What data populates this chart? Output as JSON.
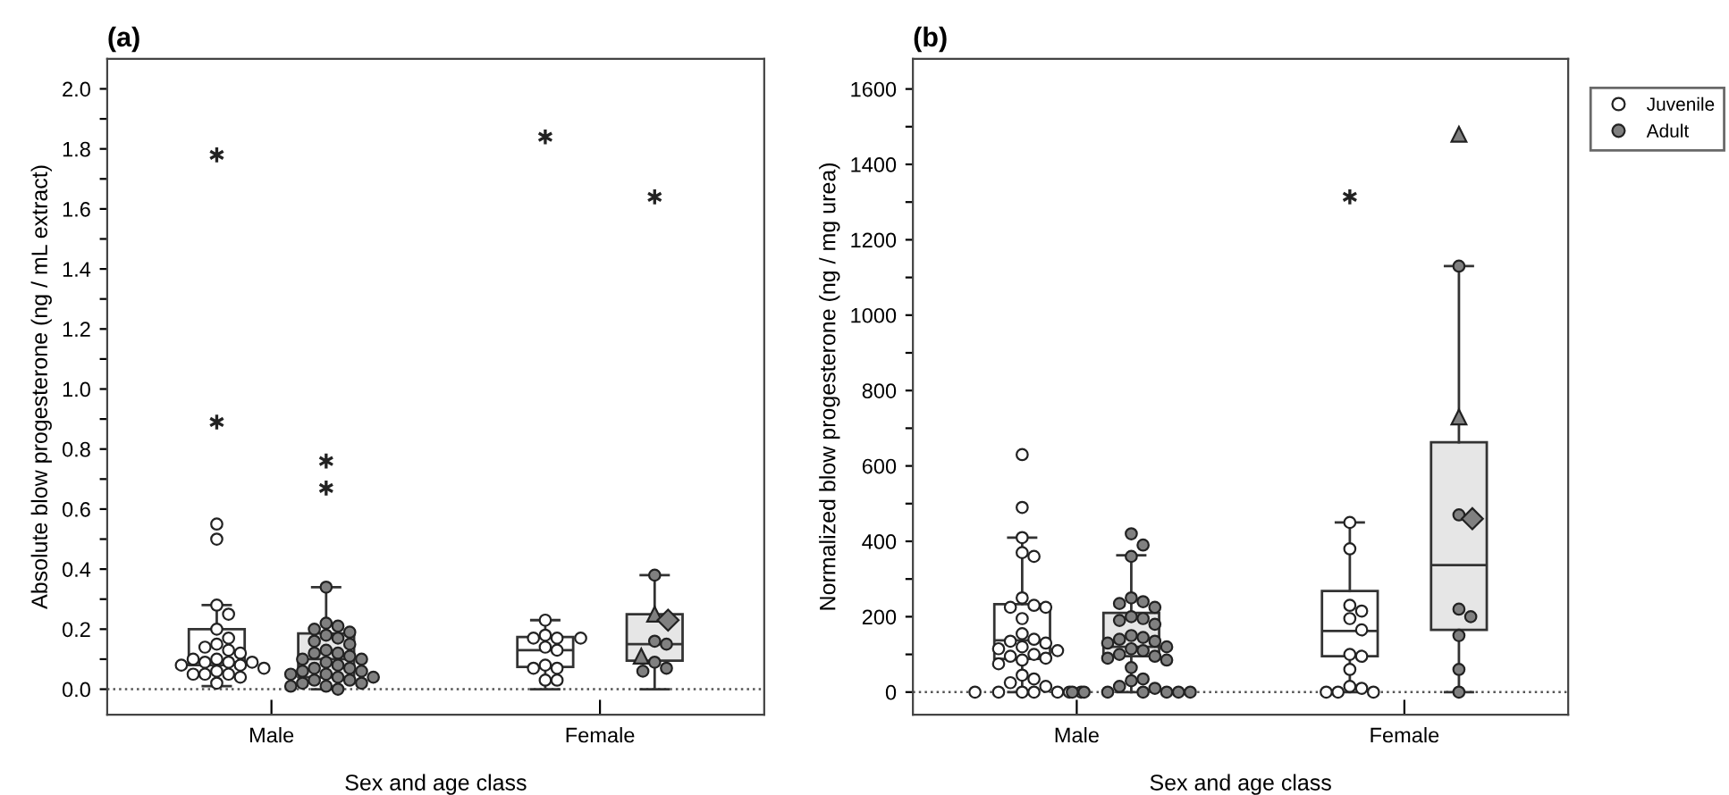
{
  "chart_data": [
    {
      "type": "box",
      "title": "(a)",
      "xlabel": "Sex and age class",
      "ylabel": "Absolute blow progesterone (ng / mL extract)",
      "categories": [
        "Male",
        "Female"
      ],
      "ylim": [
        -0.085,
        2.1
      ],
      "yticks": [
        {
          "value": 0,
          "label": "0.0"
        },
        {
          "value": 0.1,
          "label": null
        },
        {
          "value": 0.2,
          "label": "0.2"
        },
        {
          "value": 0.3,
          "label": null
        },
        {
          "value": 0.4,
          "label": "0.4"
        },
        {
          "value": 0.5,
          "label": null
        },
        {
          "value": 0.6,
          "label": "0.6"
        },
        {
          "value": 0.7,
          "label": null
        },
        {
          "value": 0.8,
          "label": "0.8"
        },
        {
          "value": 0.9,
          "label": null
        },
        {
          "value": 1.0,
          "label": "1.0"
        },
        {
          "value": 1.1,
          "label": null
        },
        {
          "value": 1.2,
          "label": "1.2"
        },
        {
          "value": 1.3,
          "label": null
        },
        {
          "value": 1.4,
          "label": "1.4"
        },
        {
          "value": 1.5,
          "label": null
        },
        {
          "value": 1.6,
          "label": "1.6"
        },
        {
          "value": 1.7,
          "label": null
        },
        {
          "value": 1.8,
          "label": "1.8"
        },
        {
          "value": 1.9,
          "label": null
        },
        {
          "value": 2.0,
          "label": "2.0"
        }
      ],
      "grid": false,
      "legend": false,
      "ref_lines": [
        {
          "axis": "y",
          "value": 0,
          "line_style": "dotted",
          "color": "#555555"
        }
      ],
      "series": [
        {
          "color": "#ffffff",
          "boxes": [
            {
              "low": 0.01,
              "q1": 0.08,
              "median": 0.09,
              "q3": 0.2,
              "high": 0.28,
              "outliers": [
                1.78,
                0.89
              ]
            },
            {
              "low": 0.0,
              "q1": 0.074,
              "median": 0.13,
              "q3": 0.174,
              "high": 0.23,
              "outliers": [
                1.84
              ]
            }
          ]
        },
        {
          "color": "#e6e6e6",
          "boxes": [
            {
              "low": 0.0,
              "q1": 0.04,
              "median": 0.1,
              "q3": 0.186,
              "high": 0.34,
              "outliers": [
                0.76,
                0.67
              ]
            },
            {
              "low": 0.0,
              "q1": 0.095,
              "median": 0.15,
              "q3": 0.25,
              "high": 0.38,
              "outliers": [
                1.64
              ]
            }
          ]
        },
        {
          "type": "scatter",
          "marker": "circle",
          "color": "#ffffff",
          "x": [
            "Male",
            "Male",
            "Male",
            "Male",
            "Male",
            "Male",
            "Male",
            "Male",
            "Male",
            "Male",
            "Male",
            "Male",
            "Male",
            "Male",
            "Male",
            "Male",
            "Male",
            "Male",
            "Male",
            "Male",
            "Male",
            "Male",
            "Male",
            "Male",
            "Female",
            "Female",
            "Female",
            "Female",
            "Female",
            "Female",
            "Female",
            "Female",
            "Female",
            "Female",
            "Female",
            "Female"
          ],
          "values": [
            0.55,
            0.5,
            0.28,
            0.25,
            0.2,
            0.17,
            0.15,
            0.14,
            0.13,
            0.12,
            0.1,
            0.1,
            0.09,
            0.09,
            0.09,
            0.08,
            0.08,
            0.07,
            0.06,
            0.05,
            0.05,
            0.05,
            0.04,
            0.02,
            0.23,
            0.18,
            0.17,
            0.17,
            0.17,
            0.14,
            0.13,
            0.08,
            0.07,
            0.07,
            0.03,
            0.03
          ]
        },
        {
          "type": "scatter",
          "marker": "circle",
          "color": "#808080",
          "x": [
            "Male",
            "Male",
            "Male",
            "Male",
            "Male",
            "Male",
            "Male",
            "Male",
            "Male",
            "Male",
            "Male",
            "Male",
            "Male",
            "Male",
            "Male",
            "Male",
            "Male",
            "Male",
            "Male",
            "Male",
            "Male",
            "Male",
            "Male",
            "Male",
            "Male",
            "Male",
            "Male",
            "Male",
            "Male",
            "Male",
            "Male",
            "Male",
            "Female",
            "Female",
            "Female",
            "Female",
            "Female",
            "Female"
          ],
          "values": [
            0.34,
            0.22,
            0.21,
            0.2,
            0.19,
            0.18,
            0.17,
            0.16,
            0.15,
            0.13,
            0.12,
            0.12,
            0.11,
            0.1,
            0.1,
            0.09,
            0.08,
            0.07,
            0.07,
            0.06,
            0.06,
            0.05,
            0.05,
            0.04,
            0.04,
            0.03,
            0.03,
            0.02,
            0.02,
            0.01,
            0.01,
            0.0,
            0.38,
            0.16,
            0.15,
            0.09,
            0.07,
            0.06
          ]
        },
        {
          "type": "scatter",
          "marker": "triangle",
          "color": "#808080",
          "x": [
            "Female",
            "Female"
          ],
          "values": [
            0.25,
            0.11
          ]
        },
        {
          "type": "scatter",
          "marker": "diamond",
          "color": "#808080",
          "x": [
            "Female"
          ],
          "values": [
            0.23
          ]
        }
      ]
    },
    {
      "type": "box",
      "title": "(b)",
      "xlabel": "Sex and age class",
      "ylabel": "Normalized blow progesterone (ng / mg urea)",
      "categories": [
        "Male",
        "Female"
      ],
      "ylim": [
        -60,
        1680
      ],
      "yticks": [
        0,
        {
          "value": 100,
          "label": null
        },
        200,
        {
          "value": 300,
          "label": null
        },
        400,
        {
          "value": 500,
          "label": null
        },
        600,
        {
          "value": 700,
          "label": null
        },
        800,
        {
          "value": 900,
          "label": null
        },
        1000,
        {
          "value": 1100,
          "label": null
        },
        1200,
        {
          "value": 1300,
          "label": null
        },
        1400,
        {
          "value": 1500,
          "label": null
        },
        1600
      ],
      "grid": false,
      "legend": "right",
      "ref_lines": [
        {
          "axis": "y",
          "value": 0,
          "line_style": "dotted",
          "color": "#555555"
        }
      ],
      "series": [
        {
          "color": "#ffffff",
          "boxes": [
            {
              "low": 0,
              "q1": 88,
              "median": 137,
              "q3": 233,
              "high": 410
            },
            {
              "low": 0,
              "q1": 95,
              "median": 162,
              "q3": 268,
              "high": 450,
              "outliers": [
                1314
              ]
            }
          ]
        },
        {
          "color": "#e6e6e6",
          "boxes": [
            {
              "low": 0,
              "q1": 95,
              "median": 120,
              "q3": 210,
              "high": 363
            },
            {
              "low": 0,
              "q1": 165,
              "median": 337,
              "q3": 663,
              "high": 1130
            }
          ]
        },
        {
          "type": "scatter",
          "name": "Juvenile",
          "marker": "circle",
          "color": "#ffffff",
          "x": [
            "Male",
            "Male",
            "Male",
            "Male",
            "Male",
            "Male",
            "Male",
            "Male",
            "Male",
            "Male",
            "Male",
            "Male",
            "Male",
            "Male",
            "Male",
            "Male",
            "Male",
            "Male",
            "Male",
            "Male",
            "Male",
            "Male",
            "Male",
            "Male",
            "Male",
            "Male",
            "Male",
            "Male",
            "Male",
            "Male",
            "Male",
            "Male",
            "Male",
            "Female",
            "Female",
            "Female",
            "Female",
            "Female",
            "Female",
            "Female",
            "Female",
            "Female",
            "Female",
            "Female",
            "Female",
            "Female",
            "Female"
          ],
          "values": [
            630,
            490,
            410,
            370,
            360,
            250,
            230,
            225,
            225,
            195,
            155,
            140,
            135,
            130,
            120,
            115,
            110,
            100,
            95,
            90,
            85,
            75,
            45,
            35,
            25,
            15,
            0,
            0,
            0,
            0,
            0,
            0,
            0,
            450,
            380,
            230,
            215,
            195,
            165,
            100,
            95,
            60,
            15,
            10,
            0,
            0,
            0
          ]
        },
        {
          "type": "scatter",
          "name": "Adult",
          "marker": "circle",
          "color": "#808080",
          "x": [
            "Male",
            "Male",
            "Male",
            "Male",
            "Male",
            "Male",
            "Male",
            "Male",
            "Male",
            "Male",
            "Male",
            "Male",
            "Male",
            "Male",
            "Male",
            "Male",
            "Male",
            "Male",
            "Male",
            "Male",
            "Male",
            "Male",
            "Male",
            "Male",
            "Male",
            "Male",
            "Male",
            "Male",
            "Male",
            "Male",
            "Male",
            "Male",
            "Male",
            "Male",
            "Male",
            "Female",
            "Female",
            "Female",
            "Female",
            "Female",
            "Female",
            "Female"
          ],
          "values": [
            420,
            390,
            360,
            250,
            240,
            235,
            225,
            200,
            195,
            190,
            180,
            150,
            145,
            140,
            135,
            130,
            120,
            115,
            110,
            100,
            95,
            90,
            85,
            65,
            35,
            30,
            15,
            10,
            0,
            0,
            0,
            0,
            0,
            0,
            0,
            1130,
            470,
            220,
            200,
            150,
            60,
            0
          ]
        },
        {
          "type": "scatter",
          "marker": "triangle",
          "color": "#808080",
          "x": [
            "Female",
            "Female"
          ],
          "values": [
            1480,
            730
          ]
        },
        {
          "type": "scatter",
          "marker": "diamond",
          "color": "#808080",
          "x": [
            "Female"
          ],
          "values": [
            460
          ]
        }
      ]
    }
  ]
}
